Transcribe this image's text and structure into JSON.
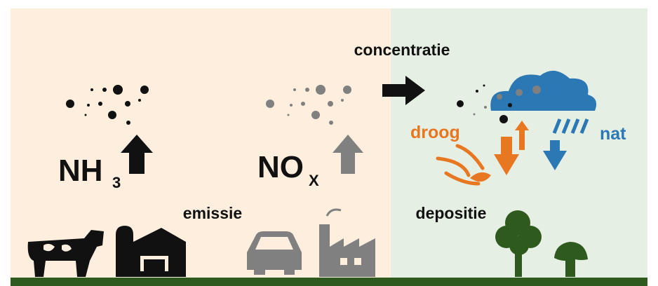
{
  "labels": {
    "concentration": "concentratie",
    "emission": "emissie",
    "deposition": "depositie",
    "dry": "droog",
    "wet": "nat"
  },
  "nh3": {
    "main": "NH",
    "sub": "3"
  },
  "nox": {
    "main": "NO",
    "sub": "X"
  }
}
